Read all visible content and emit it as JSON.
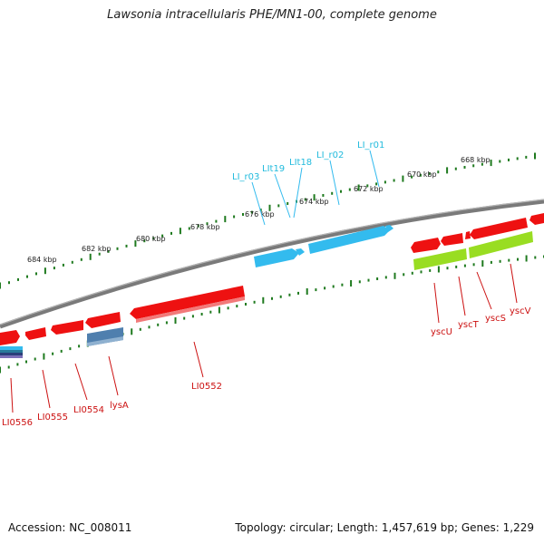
{
  "title": "Lawsonia intracellularis PHE/MN1-00, complete genome",
  "footer": {
    "accession": "Accession: NC_008011",
    "topology": "Topology: circular; Length: 1,457,619 bp; Genes: 1,229"
  },
  "colors": {
    "backbone": "#7a7a7a",
    "tick": "#1f7a1f",
    "red_gene": "#ee1111",
    "cyan_gene": "#33bbee",
    "steel_gene": "#4f7fae",
    "lime_gene": "#99dd22",
    "red_label": "#cc1111",
    "cyan_label": "#22bbdd"
  },
  "ticks": [
    "684 kbp",
    "682 kbp",
    "680 kbp",
    "678 kbp",
    "676 kbp",
    "674 kbp",
    "672 kbp",
    "670 kbp",
    "668 kbp"
  ],
  "labels_red": [
    "LI0556",
    "LI0555",
    "LI0554",
    "lysA",
    "LI0552",
    "yscU",
    "yscT",
    "yscS",
    "yscV"
  ],
  "labels_cyan": [
    "LI_r03",
    "LIt19",
    "LIt18",
    "LI_r02",
    "LI_r01"
  ]
}
